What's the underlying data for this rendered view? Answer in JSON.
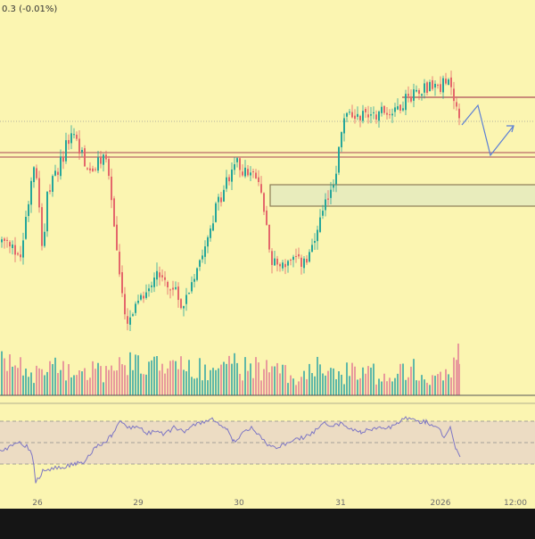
{
  "header": {
    "change_text": "0.3 (-0.01%)"
  },
  "colors": {
    "background": "#fbf5b1",
    "outer": "#151515",
    "up": "#26a69a",
    "down": "#e4676b",
    "level_line": "#b96969",
    "zone_fill": "#e8ecbc",
    "zone_border": "#8d7d57",
    "projection": "#5b7fd6",
    "rsi_line": "#7d76c4",
    "rsi_band": "#ecdcc3",
    "axis_text": "#6b6b6b"
  },
  "chart_data": {
    "type": "candlestick",
    "title": "",
    "x_axis": {
      "tick_labels": [
        "26",
        "29",
        "30",
        "31",
        "2026",
        "12:00"
      ]
    },
    "y_range": [
      0,
      100
    ],
    "candles_note": "",
    "path_segments": [
      {
        "x0": 0,
        "x1": 22,
        "y0": 40,
        "y1": 35,
        "vol": 0.8
      },
      {
        "x0": 22,
        "x1": 38,
        "y0": 35,
        "y1": 70,
        "vol": 0.5
      },
      {
        "x0": 38,
        "x1": 47,
        "y0": 70,
        "y1": 37,
        "vol": 0.4
      },
      {
        "x0": 47,
        "x1": 52,
        "y0": 37,
        "y1": 55,
        "vol": 0.3
      },
      {
        "x0": 52,
        "x1": 80,
        "y0": 55,
        "y1": 78,
        "vol": 0.6
      },
      {
        "x0": 80,
        "x1": 100,
        "y0": 78,
        "y1": 63,
        "vol": 0.5
      },
      {
        "x0": 100,
        "x1": 118,
        "y0": 63,
        "y1": 70,
        "vol": 0.5
      },
      {
        "x0": 118,
        "x1": 140,
        "y0": 70,
        "y1": 10,
        "vol": 0.6
      },
      {
        "x0": 140,
        "x1": 175,
        "y0": 10,
        "y1": 30,
        "vol": 0.8
      },
      {
        "x0": 175,
        "x1": 205,
        "y0": 30,
        "y1": 18,
        "vol": 0.6
      },
      {
        "x0": 205,
        "x1": 240,
        "y0": 18,
        "y1": 50,
        "vol": 0.6
      },
      {
        "x0": 240,
        "x1": 262,
        "y0": 50,
        "y1": 67,
        "vol": 0.8
      },
      {
        "x0": 262,
        "x1": 290,
        "y0": 67,
        "y1": 60,
        "vol": 0.6
      },
      {
        "x0": 290,
        "x1": 305,
        "y0": 60,
        "y1": 32,
        "vol": 0.6
      },
      {
        "x0": 305,
        "x1": 345,
        "y0": 32,
        "y1": 33,
        "vol": 0.4
      },
      {
        "x0": 345,
        "x1": 375,
        "y0": 33,
        "y1": 63,
        "vol": 0.6
      },
      {
        "x0": 375,
        "x1": 385,
        "y0": 63,
        "y1": 83,
        "vol": 0.4
      },
      {
        "x0": 385,
        "x1": 440,
        "y0": 83,
        "y1": 85,
        "vol": 0.4
      },
      {
        "x0": 440,
        "x1": 470,
        "y0": 85,
        "y1": 93,
        "vol": 0.6
      },
      {
        "x0": 470,
        "x1": 505,
        "y0": 93,
        "y1": 94,
        "vol": 0.4
      },
      {
        "x0": 505,
        "x1": 515,
        "y0": 94,
        "y1": 80,
        "vol": 0.7
      }
    ],
    "levels": [
      {
        "kind": "horizontal-band",
        "label": ""
      },
      {
        "kind": "resistance-line",
        "label": ""
      },
      {
        "kind": "demand-zone",
        "label": ""
      }
    ],
    "projection": {
      "kind": "path",
      "label": ""
    },
    "rsi": {
      "upper": 70,
      "middle": 50,
      "lower": 30,
      "range": [
        0,
        100
      ]
    },
    "grid": false,
    "legend": "none"
  }
}
